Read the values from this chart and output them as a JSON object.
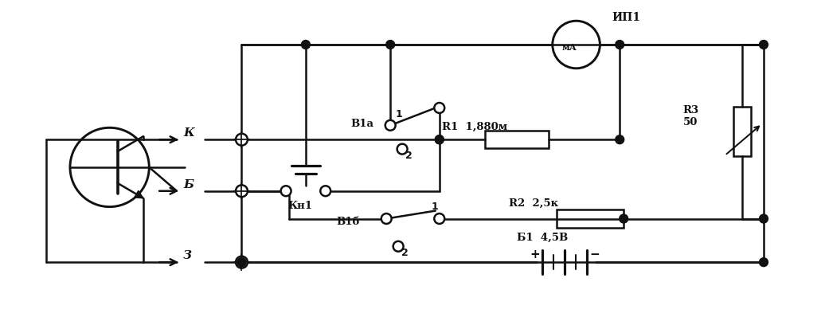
{
  "bg_color": "#ffffff",
  "line_color": "#111111",
  "lw": 1.8,
  "fig_width": 10.36,
  "fig_height": 4.08,
  "labels": {
    "K": "К",
    "B": "Б",
    "Z": "З",
    "B1a": "В1а",
    "B1b": "В1б",
    "Kn1": "Кн1",
    "IP1": "ИП1",
    "R1": "R1  1,880м",
    "R2": "R2  2,5к",
    "R3": "R3\n50",
    "B1": "Б1  4,5В",
    "uA": "мА"
  }
}
